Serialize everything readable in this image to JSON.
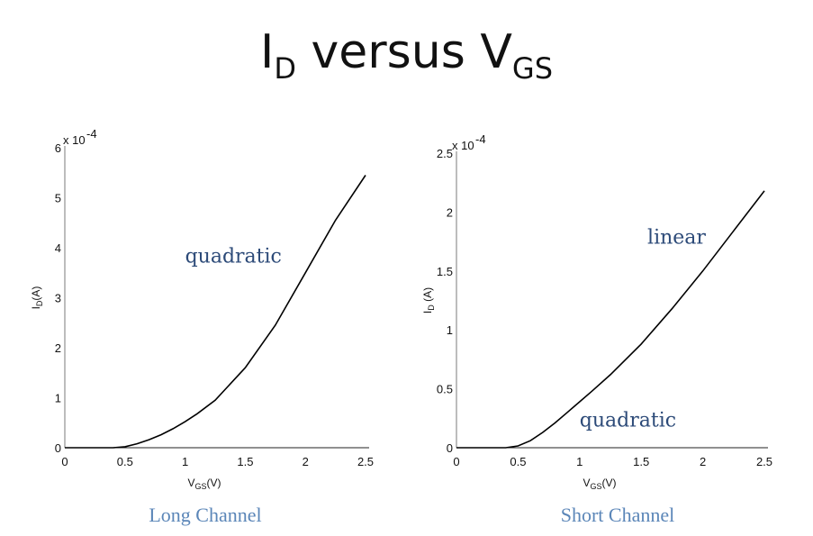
{
  "title": {
    "main": "I",
    "sub1": "D",
    "mid": " versus V",
    "sub2": "GS"
  },
  "chart_data": [
    {
      "type": "line",
      "caption": "Long Channel",
      "xlabel": "V_GS(V)",
      "ylabel": "I_D(A)",
      "multiplier": "x 10^-4",
      "xlim": [
        0,
        2.5
      ],
      "ylim": [
        0,
        6
      ],
      "xticks": [
        {
          "v": 0,
          "t": "0"
        },
        {
          "v": 0.5,
          "t": "0.5"
        },
        {
          "v": 1,
          "t": "1"
        },
        {
          "v": 1.5,
          "t": "1.5"
        },
        {
          "v": 2,
          "t": "2"
        },
        {
          "v": 2.5,
          "t": "2.5"
        }
      ],
      "yticks": [
        {
          "v": 0,
          "t": "0"
        },
        {
          "v": 1,
          "t": "1"
        },
        {
          "v": 2,
          "t": "2"
        },
        {
          "v": 3,
          "t": "3"
        },
        {
          "v": 4,
          "t": "4"
        },
        {
          "v": 5,
          "t": "5"
        },
        {
          "v": 6,
          "t": "6"
        }
      ],
      "annotation": {
        "text": "quadratic",
        "x": 1.0,
        "y": 3.7
      },
      "series": [
        {
          "x": [
            0,
            0.4,
            0.5,
            0.6,
            0.7,
            0.8,
            0.9,
            1.0,
            1.1,
            1.25,
            1.5,
            1.75,
            2.0,
            2.25,
            2.5
          ],
          "y": [
            0,
            0,
            0.02,
            0.08,
            0.16,
            0.26,
            0.38,
            0.52,
            0.68,
            0.95,
            1.6,
            2.45,
            3.5,
            4.55,
            5.45
          ]
        }
      ]
    },
    {
      "type": "line",
      "caption": "Short Channel",
      "xlabel": "V_GS(V)",
      "ylabel": "I_D (A)",
      "multiplier": "x 10^-4",
      "xlim": [
        0,
        2.5
      ],
      "ylim": [
        0,
        2.5
      ],
      "xticks": [
        {
          "v": 0,
          "t": "0"
        },
        {
          "v": 0.5,
          "t": "0.5"
        },
        {
          "v": 1,
          "t": "1"
        },
        {
          "v": 1.5,
          "t": "1.5"
        },
        {
          "v": 2,
          "t": "2"
        },
        {
          "v": 2.5,
          "t": "2.5"
        }
      ],
      "yticks": [
        {
          "v": 0,
          "t": "0"
        },
        {
          "v": 0.5,
          "t": "0.5"
        },
        {
          "v": 1,
          "t": "1"
        },
        {
          "v": 1.5,
          "t": "1.5"
        },
        {
          "v": 2,
          "t": "2"
        },
        {
          "v": 2.5,
          "t": "2.5"
        }
      ],
      "annotations": [
        {
          "text": "linear",
          "x": 1.55,
          "y": 1.73
        },
        {
          "text": "quadratic",
          "x": 1.0,
          "y": 0.18
        }
      ],
      "series": [
        {
          "x": [
            0,
            0.4,
            0.5,
            0.6,
            0.7,
            0.8,
            0.9,
            1.0,
            1.1,
            1.25,
            1.5,
            1.75,
            2.0,
            2.25,
            2.5
          ],
          "y": [
            0,
            0,
            0.015,
            0.06,
            0.13,
            0.21,
            0.3,
            0.39,
            0.48,
            0.62,
            0.88,
            1.18,
            1.5,
            1.84,
            2.18
          ]
        }
      ]
    }
  ]
}
